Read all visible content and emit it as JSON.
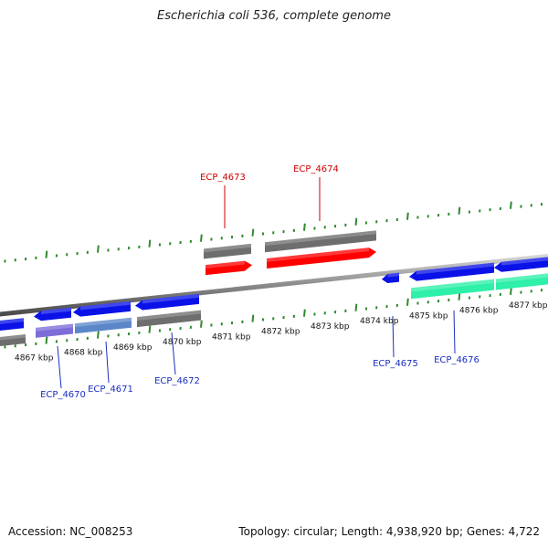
{
  "title": "Escherichia coli 536, complete genome",
  "footer": {
    "accession": "Accession: NC_008253",
    "summary": "Topology: circular; Length: 4,938,920 bp; Genes: 4,722"
  },
  "colors": {
    "backbone": "#8c8c8c",
    "tick": "#2f8a2f",
    "gray_block": "#6e6e6e",
    "red_feature": "#ff0000",
    "blue_feature": "#0a12e8",
    "purple_feature": "#7b6ed8",
    "steel_feature": "#5b87c9",
    "teal_feature": "#2ef0a8",
    "red_label": "#cc0000",
    "blue_label": "#1a2fc0"
  },
  "scale": {
    "unit": "kbp",
    "labels": [
      "4867 kbp",
      "4868 kbp",
      "4869 kbp",
      "4870 kbp",
      "4871 kbp",
      "4872 kbp",
      "4873 kbp",
      "4874 kbp",
      "4875 kbp",
      "4876 kbp",
      "4877 kbp"
    ]
  },
  "genes": {
    "forward": [
      "ECP_4673",
      "ECP_4674"
    ],
    "reverse": [
      "ECP_4670",
      "ECP_4671",
      "ECP_4672",
      "ECP_4675",
      "ECP_4676"
    ]
  }
}
